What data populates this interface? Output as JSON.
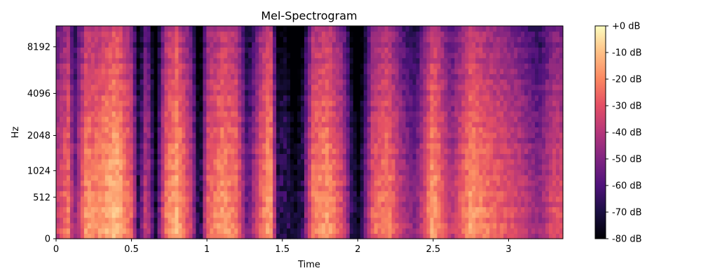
{
  "chart_data": {
    "type": "heatmap",
    "title": "Mel-Spectrogram",
    "xlabel": "Time",
    "ylabel": "Hz",
    "xlim": [
      0,
      3.36
    ],
    "x_ticks": [
      0,
      0.5,
      1,
      1.5,
      2,
      2.5,
      3
    ],
    "x_tick_labels": [
      "0",
      "0.5",
      "1",
      "1.5",
      "2",
      "2.5",
      "3"
    ],
    "y_scale": "mel",
    "y_ticks": [
      0,
      512,
      1024,
      2048,
      4096,
      8192
    ],
    "y_tick_labels": [
      "0",
      "512",
      "1024",
      "2048",
      "4096",
      "8192"
    ],
    "colormap": "magma",
    "colorbar": {
      "range": [
        -80,
        0
      ],
      "ticks": [
        0,
        -10,
        -20,
        -30,
        -40,
        -50,
        -60,
        -70,
        -80
      ],
      "tick_labels": [
        "+0 dB",
        "-10 dB",
        "-20 dB",
        "-30 dB",
        "-40 dB",
        "-50 dB",
        "-60 dB",
        "-70 dB",
        "-80 dB"
      ]
    },
    "time_envelope": {
      "x": [
        0,
        0.08,
        0.12,
        0.2,
        0.26,
        0.4,
        0.5,
        0.55,
        0.6,
        0.66,
        0.72,
        0.8,
        0.9,
        0.95,
        1.0,
        1.1,
        1.2,
        1.27,
        1.35,
        1.42,
        1.47,
        1.52,
        1.58,
        1.63,
        1.7,
        1.8,
        1.9,
        2.0,
        2.1,
        2.2,
        2.3,
        2.38,
        2.5,
        2.62,
        2.75,
        2.88,
        3.0,
        3.1,
        3.2,
        3.3,
        3.36
      ],
      "level_db": [
        -35,
        -20,
        -48,
        -15,
        -18,
        -8,
        -25,
        -62,
        -30,
        -70,
        -22,
        -10,
        -35,
        -72,
        -25,
        -15,
        -20,
        -55,
        -25,
        -10,
        -60,
        -55,
        -74,
        -60,
        -20,
        -14,
        -30,
        -75,
        -25,
        -18,
        -38,
        -48,
        -12,
        -38,
        -14,
        -22,
        -28,
        -35,
        -45,
        -28,
        -30
      ]
    }
  }
}
